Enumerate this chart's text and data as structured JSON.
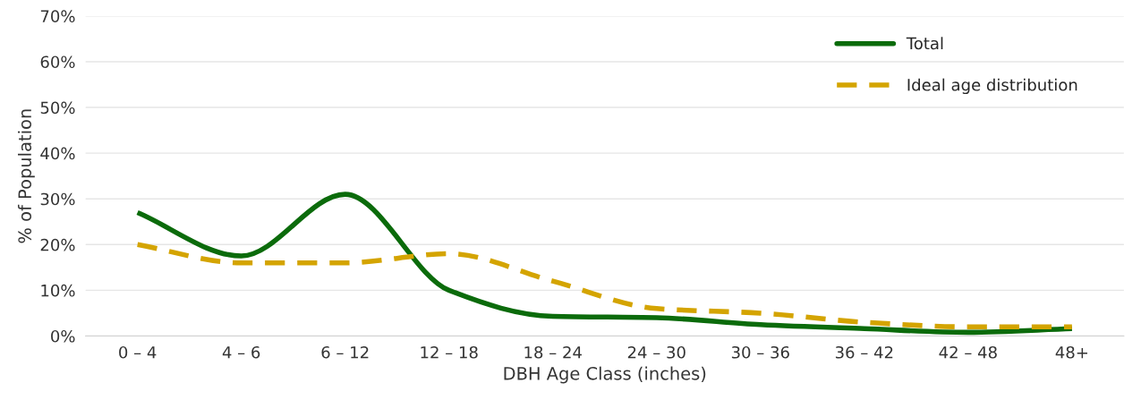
{
  "chart_data": {
    "type": "line",
    "xlabel": "DBH Age Class (inches)",
    "ylabel": "% of Population",
    "categories": [
      "0 – 4",
      "4 – 6",
      "6 – 12",
      "12 – 18",
      "18 – 24",
      "24 – 30",
      "30 – 36",
      "36 – 42",
      "42 – 48",
      "48+"
    ],
    "series": [
      {
        "name": "Total",
        "color": "#0b6b0b",
        "line_style": "solid",
        "values": [
          27,
          17.5,
          31,
          10,
          4.3,
          4,
          2.5,
          1.6,
          0.8,
          1.6
        ]
      },
      {
        "name": "Ideal age distribution",
        "color": "#d4a400",
        "line_style": "dashed",
        "values": [
          20,
          16,
          16,
          18,
          12,
          6,
          5,
          3,
          2,
          2
        ]
      }
    ],
    "ylim": [
      0,
      70
    ],
    "yticks": [
      {
        "value": 0,
        "label": "0%"
      },
      {
        "value": 10,
        "label": "10%"
      },
      {
        "value": 20,
        "label": "20%"
      },
      {
        "value": 30,
        "label": "30%"
      },
      {
        "value": 40,
        "label": "40%"
      },
      {
        "value": 50,
        "label": "50%"
      },
      {
        "value": 60,
        "label": "60%"
      },
      {
        "value": 70,
        "label": "70%"
      }
    ],
    "grid": "y",
    "legend": "top right",
    "marker": "none"
  }
}
